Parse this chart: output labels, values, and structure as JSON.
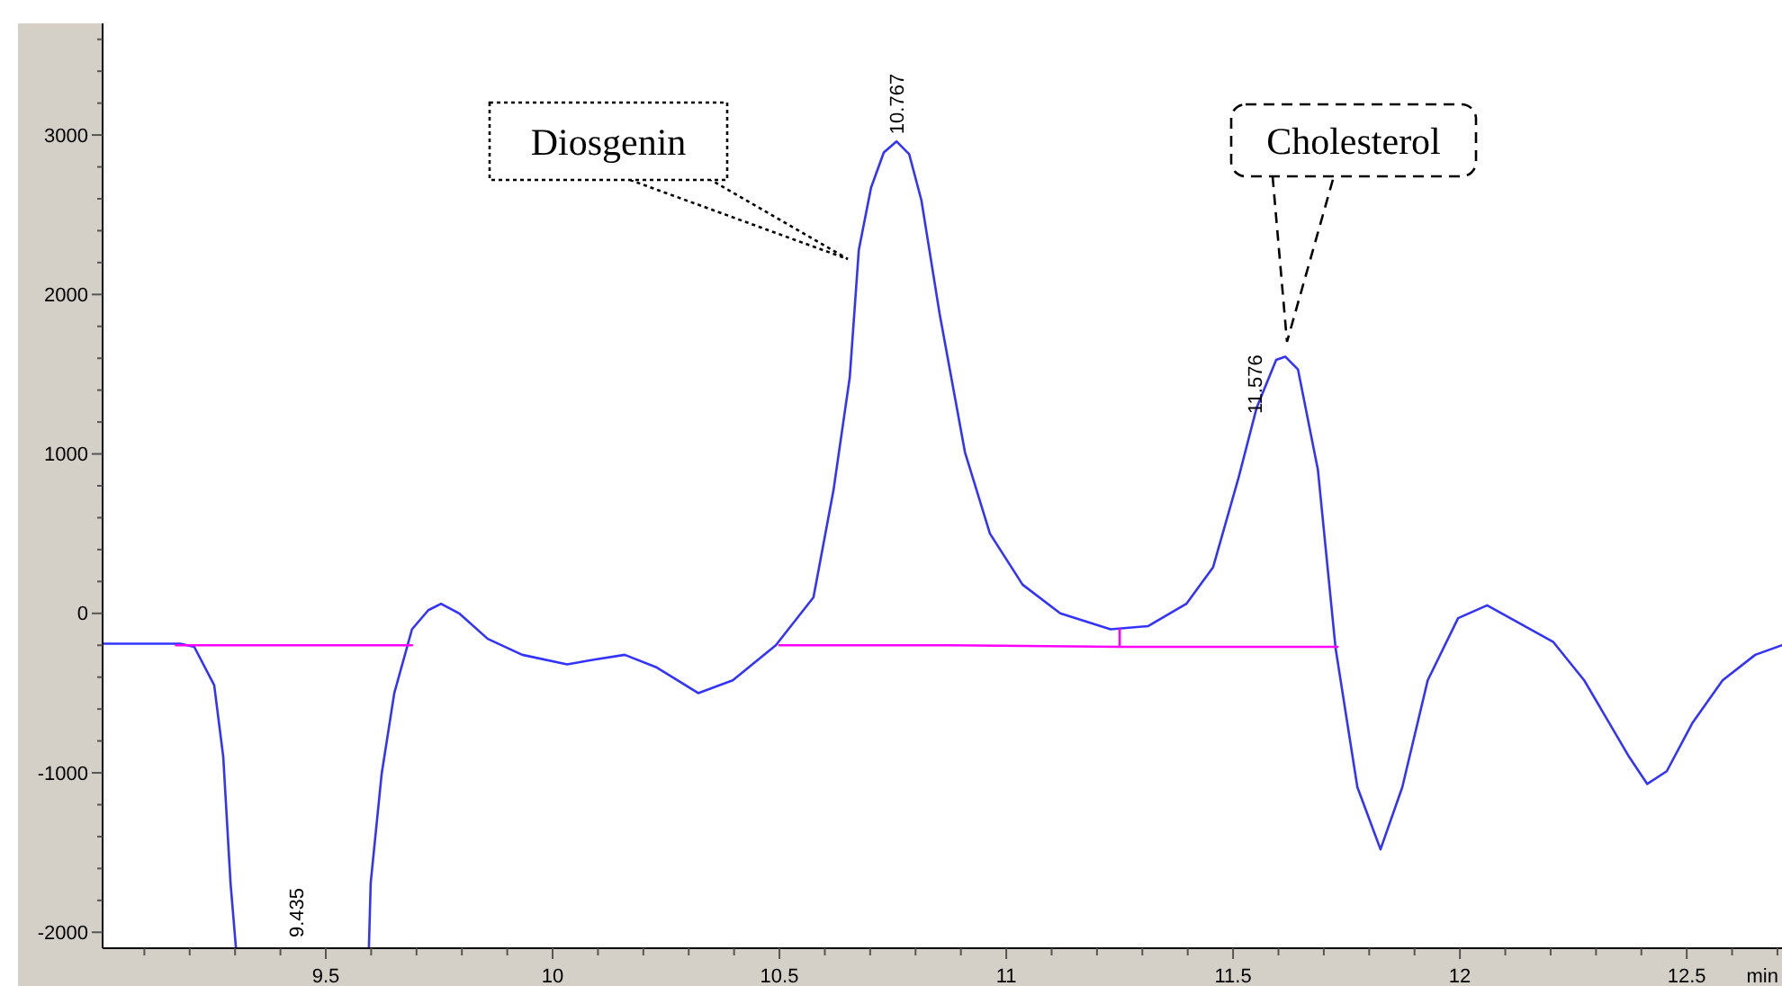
{
  "chart_data": {
    "type": "line",
    "xlabel": "min",
    "xlim": [
      9.008,
      12.71
    ],
    "ylim": [
      -2100,
      3700
    ],
    "xticks": [
      {
        "value": 9.1,
        "label": null
      },
      {
        "value": 9.2,
        "label": null
      },
      {
        "value": 9.3,
        "label": null
      },
      {
        "value": 9.4,
        "label": null
      },
      9.5,
      {
        "value": 9.6,
        "label": null
      },
      {
        "value": 9.7,
        "label": null
      },
      {
        "value": 9.8,
        "label": null
      },
      {
        "value": 9.9,
        "label": null
      },
      10,
      {
        "value": 10.1,
        "label": null
      },
      {
        "value": 10.2,
        "label": null
      },
      {
        "value": 10.3,
        "label": null
      },
      {
        "value": 10.4,
        "label": null
      },
      10.5,
      {
        "value": 10.6,
        "label": null
      },
      {
        "value": 10.7,
        "label": null
      },
      {
        "value": 10.8,
        "label": null
      },
      {
        "value": 10.9,
        "label": null
      },
      11,
      {
        "value": 11.1,
        "label": null
      },
      {
        "value": 11.2,
        "label": null
      },
      {
        "value": 11.3,
        "label": null
      },
      {
        "value": 11.4,
        "label": null
      },
      11.5,
      {
        "value": 11.6,
        "label": null
      },
      {
        "value": 11.7,
        "label": null
      },
      {
        "value": 11.8,
        "label": null
      },
      {
        "value": 11.9,
        "label": null
      },
      12,
      {
        "value": 12.1,
        "label": null
      },
      {
        "value": 12.2,
        "label": null
      },
      {
        "value": 12.3,
        "label": null
      },
      {
        "value": 12.4,
        "label": null
      },
      12.5,
      {
        "value": 12.6,
        "label": null
      },
      {
        "value": 12.7,
        "label": null
      }
    ],
    "yticks": [
      -2000,
      {
        "value": -1800,
        "label": null
      },
      {
        "value": -1600,
        "label": null
      },
      {
        "value": -1400,
        "label": null
      },
      {
        "value": -1200,
        "label": null
      },
      -1000,
      {
        "value": -800,
        "label": null
      },
      {
        "value": -600,
        "label": null
      },
      {
        "value": -400,
        "label": null
      },
      {
        "value": -200,
        "label": null
      },
      0,
      {
        "value": 200,
        "label": null
      },
      {
        "value": 400,
        "label": null
      },
      {
        "value": 600,
        "label": null
      },
      {
        "value": 800,
        "label": null
      },
      1000,
      {
        "value": 1200,
        "label": null
      },
      {
        "value": 1400,
        "label": null
      },
      {
        "value": 1600,
        "label": null
      },
      {
        "value": 1800,
        "label": null
      },
      2000,
      {
        "value": 2200,
        "label": null
      },
      {
        "value": 2400,
        "label": null
      },
      {
        "value": 2600,
        "label": null
      },
      {
        "value": 2800,
        "label": null
      },
      3000,
      {
        "value": 3200,
        "label": null
      },
      {
        "value": 3400,
        "label": null
      },
      {
        "value": 3600,
        "label": null
      }
    ],
    "grid": false,
    "marker": "none",
    "line_style": "solid",
    "series": [
      {
        "color": "#3333ff",
        "x": [
          9.008,
          9.179,
          9.21,
          9.254,
          9.274,
          9.29,
          9.302
        ],
        "values": [
          -190,
          -190,
          -210,
          -450,
          -900,
          -1690,
          -2100
        ]
      },
      {
        "color": "#3333ff",
        "x": [
          9.595,
          9.599,
          9.623,
          9.651,
          9.69,
          9.726,
          9.754,
          9.794,
          9.857,
          9.933,
          10.032,
          10.091,
          10.159,
          10.23,
          10.321,
          10.397,
          10.492,
          10.575,
          10.619,
          10.655,
          10.675,
          10.702,
          10.73,
          10.758,
          10.786,
          10.813,
          10.853,
          10.909,
          10.964,
          11.036,
          11.119,
          11.23,
          11.313,
          11.397,
          11.456,
          11.512,
          11.552,
          11.595,
          11.615,
          11.643,
          11.687,
          11.726,
          11.774,
          11.825,
          11.873,
          11.929,
          11.996,
          12.06,
          12.206,
          12.274,
          12.373,
          12.413,
          12.456,
          12.512,
          12.579,
          12.651,
          12.71
        ],
        "values": [
          -2100,
          -1690,
          -1010,
          -500,
          -100,
          20,
          60,
          0,
          -160,
          -260,
          -320,
          -290,
          -260,
          -340,
          -500,
          -420,
          -200,
          100,
          770,
          1480,
          2280,
          2670,
          2890,
          2960,
          2880,
          2590,
          1880,
          1010,
          500,
          180,
          0,
          -100,
          -80,
          60,
          290,
          850,
          1290,
          1590,
          1610,
          1530,
          900,
          -220,
          -1090,
          -1480,
          -1090,
          -420,
          -30,
          50,
          -180,
          -420,
          -900,
          -1070,
          -990,
          -690,
          -420,
          -260,
          -200
        ]
      },
      {
        "color": "#ff00ff",
        "x": [
          9.17,
          9.69
        ],
        "values": [
          -200,
          -200
        ]
      },
      {
        "color": "#ff00ff",
        "x": [
          10.5,
          10.88,
          11.25,
          11.73
        ],
        "values": [
          -200,
          -200,
          -210,
          -210
        ]
      },
      {
        "color": "#ff00ff",
        "x": [
          11.25,
          11.25
        ],
        "values": [
          -210,
          -100
        ]
      }
    ],
    "annotations": [
      "Diosgenin",
      "Cholesterol",
      {
        "text": "10.767",
        "x": 10.758,
        "y": 2960
      },
      {
        "text": "11.576",
        "x": 11.595,
        "y": 1590
      },
      "9.435"
    ]
  }
}
